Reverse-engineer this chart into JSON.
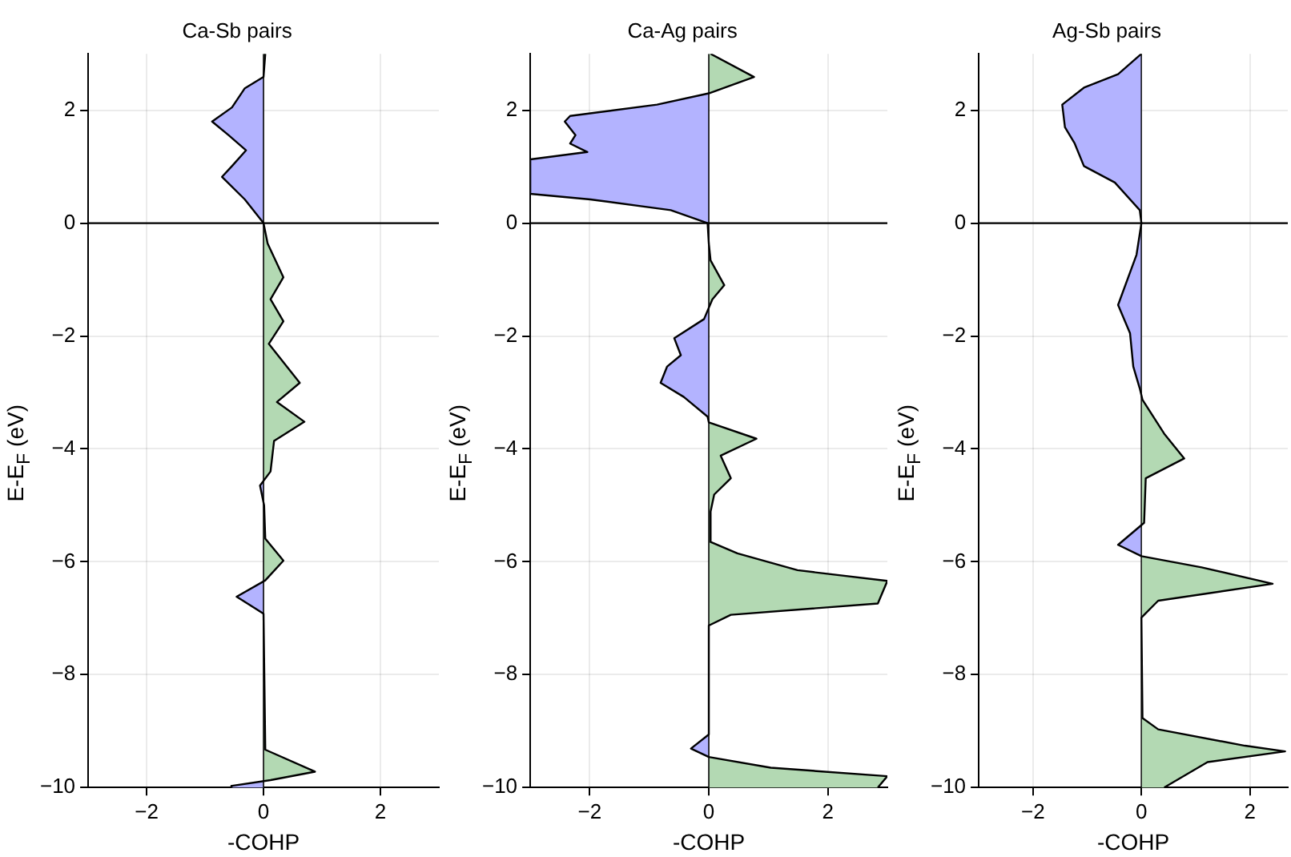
{
  "chart_data": [
    {
      "type": "area",
      "title": "Ca-Sb pairs",
      "xlabel": "-COHP",
      "ylabel": "E-E$_{F}$ (eV)",
      "xlim": [
        -3,
        3
      ],
      "xticks": [
        -2,
        0,
        2
      ],
      "ylim": [
        -10,
        3
      ],
      "yticks": [
        -10,
        -8,
        -6,
        -4,
        -2,
        0,
        2
      ],
      "grid": true,
      "colors": [
        "#b3b3ff",
        "#b3d9b3"
      ],
      "ref_lines": [
        {
          "axis": "y",
          "value": 0,
          "color": "#000000"
        }
      ],
      "series": [
        {
          "color": "#000000",
          "x": [
            0.03,
            0,
            -0.32,
            -0.54,
            -0.88,
            -0.6,
            -0.3,
            -0.54,
            -0.71,
            -0.32,
            0,
            0.07,
            0.34,
            0.12,
            0.34,
            0.09,
            0.62,
            0.23,
            0.7,
            0.18,
            0.12,
            -0.06,
            0.01,
            0.03,
            0.34,
            0.03,
            -0.46,
            0,
            0.03,
            0.88,
            0.12,
            -0.54,
            -0.55
          ],
          "values": [
            3,
            2.59,
            2.39,
            2.05,
            1.8,
            1.56,
            1.29,
            1.01,
            0.82,
            0.42,
            0,
            -0.36,
            -0.96,
            -1.35,
            -1.74,
            -2.14,
            -2.83,
            -3.17,
            -3.52,
            -3.86,
            -4.4,
            -4.65,
            -5.0,
            -5.59,
            -5.98,
            -6.33,
            -6.62,
            -6.92,
            -9.33,
            -9.72,
            -9.87,
            -9.97,
            -10
          ]
        }
      ]
    },
    {
      "type": "area",
      "title": "Ca-Ag pairs",
      "xlabel": "-COHP",
      "ylabel": "E-E$_{F}$ (eV)",
      "xlim": [
        -3,
        3
      ],
      "xticks": [
        -2,
        0,
        2
      ],
      "ylim": [
        -10,
        3
      ],
      "yticks": [
        -10,
        -8,
        -6,
        -4,
        -2,
        0,
        2
      ],
      "grid": true,
      "colors": [
        "#b3b3ff",
        "#b3d9b3"
      ],
      "ref_lines": [
        {
          "axis": "y",
          "value": 0,
          "color": "#000000"
        }
      ],
      "series": [
        {
          "color": "#000000",
          "x": [
            0.03,
            0.76,
            0,
            -0.87,
            -2.33,
            -2.42,
            -2.24,
            -2.33,
            -2.04,
            -3,
            -3,
            -1.99,
            -0.64,
            -0.02,
            0,
            0.03,
            0.26,
            0.06,
            -0.08,
            -0.58,
            -0.47,
            -0.7,
            -0.81,
            -0.42,
            -0.02,
            0,
            0.8,
            0.2,
            0.37,
            0.09,
            0.03,
            0.03,
            0.48,
            1.49,
            3,
            2.84,
            0.37,
            0,
            0,
            -0.3,
            0,
            1.04,
            3,
            2.84
          ],
          "values": [
            3,
            2.59,
            2.3,
            2.1,
            1.9,
            1.8,
            1.56,
            1.41,
            1.26,
            1.13,
            0.52,
            0.42,
            0.23,
            0,
            -0.36,
            -0.66,
            -1.1,
            -1.35,
            -1.7,
            -2.04,
            -2.34,
            -2.54,
            -2.83,
            -3.08,
            -3.43,
            -3.53,
            -3.82,
            -4.12,
            -4.52,
            -4.81,
            -5.11,
            -5.65,
            -5.85,
            -6.15,
            -6.34,
            -6.74,
            -6.94,
            -7.13,
            -9.06,
            -9.31,
            -9.46,
            -9.65,
            -9.8,
            -10
          ]
        }
      ]
    },
    {
      "type": "area",
      "title": "Ag-Sb pairs",
      "xlabel": "-COHP",
      "ylabel": "E-E$_{F}$ (eV)",
      "xlim": [
        -3,
        2.7
      ],
      "xticks": [
        -2,
        0,
        2
      ],
      "ylim": [
        -10,
        3
      ],
      "yticks": [
        -10,
        -8,
        -6,
        -4,
        -2,
        0,
        2
      ],
      "grid": true,
      "colors": [
        "#b3b3ff",
        "#b3d9b3"
      ],
      "ref_lines": [
        {
          "axis": "y",
          "value": 0,
          "color": "#000000"
        }
      ],
      "series": [
        {
          "color": "#000000",
          "x": [
            0,
            -0.43,
            -1.06,
            -1.46,
            -1.41,
            -1.23,
            -1.06,
            -0.49,
            -0.03,
            0,
            -0.09,
            -0.43,
            -0.21,
            -0.15,
            -0.03,
            0.02,
            0.42,
            0.79,
            0.08,
            0.05,
            -0.43,
            0,
            1.11,
            2.42,
            0.31,
            0,
            0.02,
            0.31,
            1.91,
            2.65,
            1.22,
            0.42
          ],
          "values": [
            3,
            2.64,
            2.4,
            2.1,
            1.7,
            1.41,
            1.01,
            0.72,
            0.23,
            0,
            -0.56,
            -1.45,
            -1.95,
            -2.54,
            -2.93,
            -3.13,
            -3.73,
            -4.17,
            -4.52,
            -5.31,
            -5.7,
            -5.9,
            -6.1,
            -6.39,
            -6.69,
            -6.99,
            -8.77,
            -8.97,
            -9.26,
            -9.36,
            -9.55,
            -10
          ]
        }
      ]
    }
  ]
}
